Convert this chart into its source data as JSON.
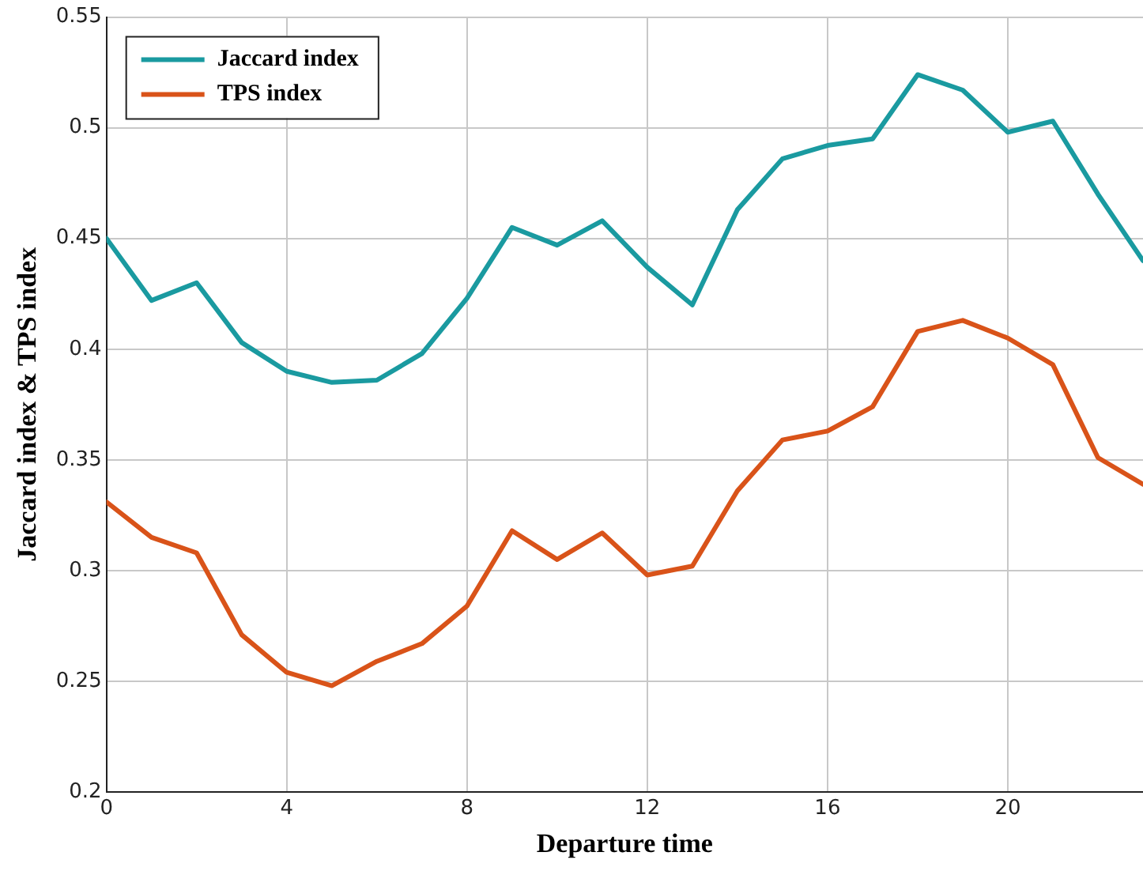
{
  "chart_data": {
    "type": "line",
    "xlabel": "Departure time",
    "ylabel": "Jaccard index & TPS index",
    "x": [
      0,
      1,
      2,
      3,
      4,
      5,
      6,
      7,
      8,
      9,
      10,
      11,
      12,
      13,
      14,
      15,
      16,
      17,
      18,
      19,
      20,
      21,
      22,
      23
    ],
    "series": [
      {
        "name": "Jaccard index",
        "color": "#1a9aa0",
        "values": [
          0.45,
          0.422,
          0.43,
          0.403,
          0.39,
          0.385,
          0.386,
          0.398,
          0.423,
          0.455,
          0.447,
          0.458,
          0.437,
          0.42,
          0.463,
          0.486,
          0.492,
          0.495,
          0.524,
          0.517,
          0.498,
          0.503,
          0.47,
          0.44
        ]
      },
      {
        "name": "TPS index",
        "color": "#d95319",
        "values": [
          0.331,
          0.315,
          0.308,
          0.271,
          0.254,
          0.248,
          0.259,
          0.267,
          0.284,
          0.318,
          0.305,
          0.317,
          0.298,
          0.302,
          0.336,
          0.359,
          0.363,
          0.374,
          0.408,
          0.413,
          0.405,
          0.393,
          0.351,
          0.339
        ]
      }
    ],
    "xlim": [
      0,
      23
    ],
    "xticks": [
      0,
      4,
      8,
      12,
      16,
      20
    ],
    "ylim": [
      0.2,
      0.55
    ],
    "yticks": [
      0.2,
      0.25,
      0.3,
      0.35,
      0.4,
      0.45,
      0.5,
      0.55
    ],
    "grid": true,
    "legend": "top left",
    "marker": "none",
    "line_style": "solid"
  }
}
